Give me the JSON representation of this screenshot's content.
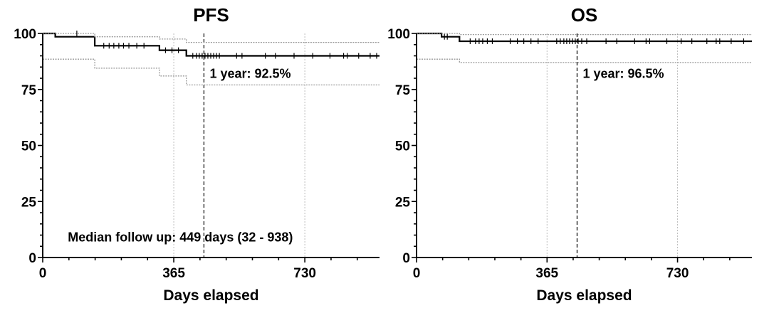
{
  "chart_data": [
    {
      "type": "line",
      "title": "PFS",
      "xlabel": "Days elapsed",
      "ylabel": "",
      "xlim": [
        0,
        938
      ],
      "ylim": [
        0,
        100
      ],
      "xticks": [
        0,
        365,
        730
      ],
      "yticks": [
        0,
        25,
        50,
        75,
        100
      ],
      "grid_x": [
        365,
        730
      ],
      "reference_x": 449,
      "annotations": [
        {
          "text": "1 year: 92.5%",
          "x": 465,
          "y": 82
        },
        {
          "text": "Median follow up: 449 days (32 - 938)",
          "x": 70,
          "y": 9
        }
      ],
      "series": [
        {
          "role": "estimate",
          "x": [
            0,
            35,
            35,
            145,
            145,
            325,
            325,
            400,
            400,
            938
          ],
          "y": [
            100,
            100,
            98.5,
            98.5,
            94.5,
            94.5,
            92.5,
            92.5,
            90,
            90
          ]
        },
        {
          "role": "upper",
          "x": [
            0,
            35,
            35,
            145,
            145,
            325,
            325,
            400,
            400,
            938
          ],
          "y": [
            100,
            100,
            100,
            100,
            98.5,
            98.5,
            97.5,
            97.5,
            96,
            96
          ]
        },
        {
          "role": "lower",
          "x": [
            0,
            35,
            35,
            145,
            145,
            325,
            325,
            400,
            400,
            938
          ],
          "y": [
            88.5,
            88.5,
            88.5,
            88.5,
            84.5,
            84.5,
            81,
            81,
            77,
            77
          ]
        }
      ],
      "censor": [
        {
          "x": 95,
          "y": 100
        },
        {
          "x": 170,
          "y": 94.5
        },
        {
          "x": 185,
          "y": 94.5
        },
        {
          "x": 198,
          "y": 94.5
        },
        {
          "x": 212,
          "y": 94.5
        },
        {
          "x": 225,
          "y": 94.5
        },
        {
          "x": 240,
          "y": 94.5
        },
        {
          "x": 262,
          "y": 94.5
        },
        {
          "x": 282,
          "y": 94.5
        },
        {
          "x": 342,
          "y": 92.5
        },
        {
          "x": 360,
          "y": 92.5
        },
        {
          "x": 378,
          "y": 92.5
        },
        {
          "x": 418,
          "y": 90
        },
        {
          "x": 428,
          "y": 90
        },
        {
          "x": 436,
          "y": 90
        },
        {
          "x": 444,
          "y": 90
        },
        {
          "x": 452,
          "y": 90
        },
        {
          "x": 460,
          "y": 90
        },
        {
          "x": 468,
          "y": 90
        },
        {
          "x": 476,
          "y": 90
        },
        {
          "x": 484,
          "y": 90
        },
        {
          "x": 492,
          "y": 90
        },
        {
          "x": 540,
          "y": 90
        },
        {
          "x": 555,
          "y": 90
        },
        {
          "x": 620,
          "y": 90
        },
        {
          "x": 648,
          "y": 90
        },
        {
          "x": 700,
          "y": 90
        },
        {
          "x": 752,
          "y": 90
        },
        {
          "x": 800,
          "y": 90
        },
        {
          "x": 838,
          "y": 90
        },
        {
          "x": 848,
          "y": 90
        },
        {
          "x": 880,
          "y": 90
        },
        {
          "x": 912,
          "y": 90
        },
        {
          "x": 930,
          "y": 90
        }
      ]
    },
    {
      "type": "line",
      "title": "OS",
      "xlabel": "Days elapsed",
      "ylabel": "",
      "xlim": [
        0,
        938
      ],
      "ylim": [
        0,
        100
      ],
      "xticks": [
        0,
        365,
        730
      ],
      "yticks": [
        0,
        25,
        50,
        75,
        100
      ],
      "grid_x": [
        365,
        730
      ],
      "reference_x": 449,
      "annotations": [
        {
          "text": "1 year: 96.5%",
          "x": 465,
          "y": 82
        }
      ],
      "series": [
        {
          "role": "estimate",
          "x": [
            0,
            70,
            70,
            120,
            120,
            938
          ],
          "y": [
            100,
            100,
            98.5,
            98.5,
            96.5,
            96.5
          ]
        },
        {
          "role": "upper",
          "x": [
            0,
            70,
            70,
            120,
            120,
            938
          ],
          "y": [
            100,
            100,
            100,
            100,
            99.5,
            99.5
          ]
        },
        {
          "role": "lower",
          "x": [
            0,
            70,
            70,
            120,
            120,
            938
          ],
          "y": [
            88.5,
            88.5,
            88.5,
            88.5,
            87,
            87
          ]
        }
      ],
      "censor": [
        {
          "x": 78,
          "y": 98.5
        },
        {
          "x": 86,
          "y": 98.5
        },
        {
          "x": 150,
          "y": 96.5
        },
        {
          "x": 165,
          "y": 96.5
        },
        {
          "x": 175,
          "y": 96.5
        },
        {
          "x": 185,
          "y": 96.5
        },
        {
          "x": 198,
          "y": 96.5
        },
        {
          "x": 212,
          "y": 96.5
        },
        {
          "x": 262,
          "y": 96.5
        },
        {
          "x": 282,
          "y": 96.5
        },
        {
          "x": 300,
          "y": 96.5
        },
        {
          "x": 320,
          "y": 96.5
        },
        {
          "x": 340,
          "y": 96.5
        },
        {
          "x": 392,
          "y": 96.5
        },
        {
          "x": 402,
          "y": 96.5
        },
        {
          "x": 412,
          "y": 96.5
        },
        {
          "x": 420,
          "y": 96.5
        },
        {
          "x": 428,
          "y": 96.5
        },
        {
          "x": 436,
          "y": 96.5
        },
        {
          "x": 444,
          "y": 96.5
        },
        {
          "x": 452,
          "y": 96.5
        },
        {
          "x": 462,
          "y": 96.5
        },
        {
          "x": 476,
          "y": 96.5
        },
        {
          "x": 530,
          "y": 96.5
        },
        {
          "x": 560,
          "y": 96.5
        },
        {
          "x": 610,
          "y": 96.5
        },
        {
          "x": 642,
          "y": 96.5
        },
        {
          "x": 652,
          "y": 96.5
        },
        {
          "x": 700,
          "y": 96.5
        },
        {
          "x": 740,
          "y": 96.5
        },
        {
          "x": 770,
          "y": 96.5
        },
        {
          "x": 812,
          "y": 96.5
        },
        {
          "x": 838,
          "y": 96.5
        },
        {
          "x": 848,
          "y": 96.5
        },
        {
          "x": 880,
          "y": 96.5
        },
        {
          "x": 915,
          "y": 96.5
        }
      ]
    }
  ]
}
